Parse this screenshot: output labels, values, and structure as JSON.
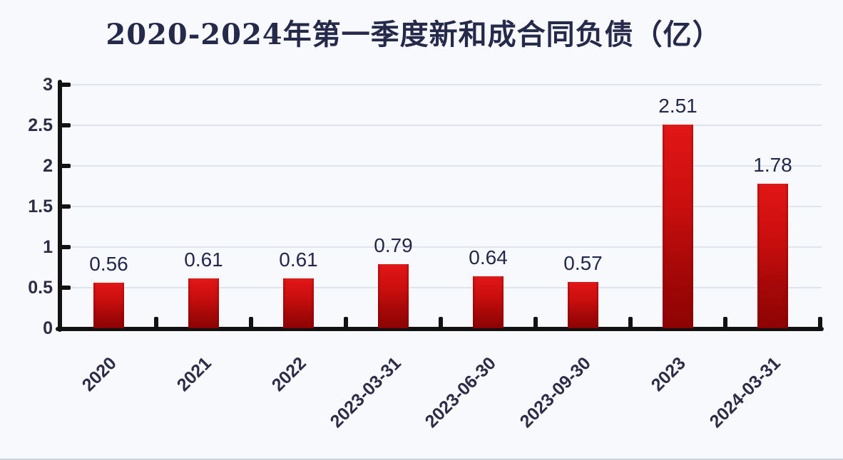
{
  "page": {
    "background_color": "#f7f9fc",
    "accent_colors": {
      "bar_top": "#e21616",
      "bar_bottom": "#8d0303",
      "axis": "#121212",
      "gridline": "#dfe4ee",
      "text": "#252a4a"
    }
  },
  "chart_data": {
    "type": "bar",
    "title": "2020-2024年第一季度新和成合同负债（亿）",
    "categories": [
      "2020",
      "2021",
      "2022",
      "2023-03-31",
      "2023-06-30",
      "2023-09-30",
      "2023",
      "2024-03-31"
    ],
    "values": [
      0.56,
      0.61,
      0.61,
      0.79,
      0.64,
      0.57,
      2.51,
      1.78
    ],
    "value_labels": [
      "0.56",
      "0.61",
      "0.61",
      "0.79",
      "0.64",
      "0.57",
      "2.51",
      "1.78"
    ],
    "xlabel": "",
    "ylabel": "",
    "ylim": [
      0,
      3
    ],
    "yticks": [
      0,
      0.5,
      1,
      1.5,
      2,
      2.5,
      3
    ],
    "ytick_labels": [
      "0",
      "0.5",
      "1",
      "1.5",
      "2",
      "2.5",
      "3"
    ],
    "grid": "horizontal-only",
    "legend": "none",
    "bar_color": "red-gradient",
    "x_label_rotation_deg": 45
  }
}
